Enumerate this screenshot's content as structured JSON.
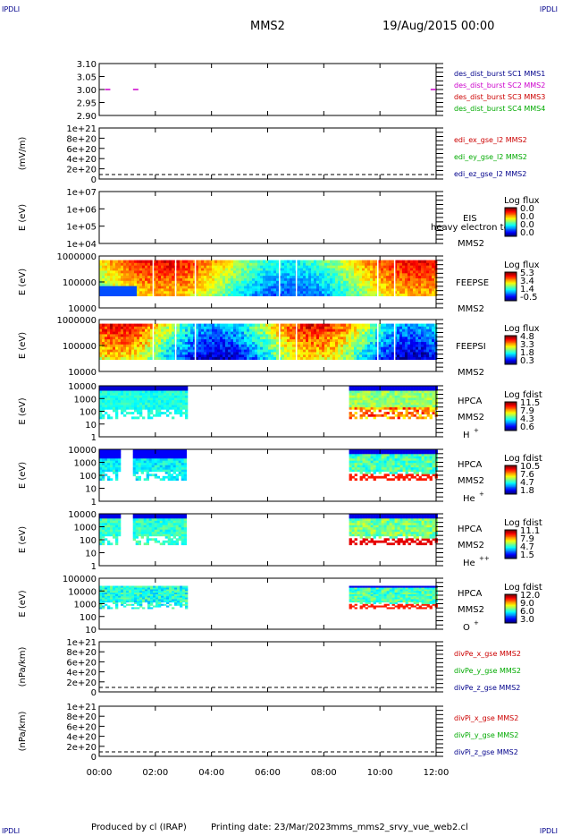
{
  "header": {
    "corner_label": "IPDLI",
    "spacecraft": "MMS2",
    "date": "19/Aug/2015 00:00"
  },
  "footer": {
    "produced_by": "Produced by cl (IRAP)",
    "printing_date": "Printing date: 23/Mar/2023",
    "file": "mms_mms2_srvy_vue_web2.cl"
  },
  "time_axis": {
    "ticks": [
      "00:00",
      "02:00",
      "04:00",
      "06:00",
      "08:00",
      "10:00",
      "12:00"
    ],
    "range_hours": [
      0,
      12
    ]
  },
  "chart_data": [
    {
      "id": "des",
      "type": "scatter",
      "ylim": [
        2.9,
        3.1
      ],
      "yticks": [
        "3.10",
        "3.05",
        "3.00",
        "2.95",
        "2.90"
      ],
      "series": [
        {
          "name": "des_dist_burst SC1 MMS1",
          "color": "#00008b",
          "points": []
        },
        {
          "name": "des_dist_burst SC2 MMS2",
          "color": "#cc00cc",
          "points": [
            [
              0.3,
              3.0
            ],
            [
              1.3,
              3.0
            ],
            [
              11.9,
              3.0
            ]
          ]
        },
        {
          "name": "des_dist_burst SC3 MMS3",
          "color": "#cc0000",
          "points": []
        },
        {
          "name": "des_dist_burst SC4 MMS4",
          "color": "#00aa00",
          "points": []
        }
      ]
    },
    {
      "id": "edi",
      "type": "line",
      "ylabel": "(mV/m)",
      "yticks": [
        "1e+21",
        "8e+20",
        "6e+20",
        "4e+20",
        "2e+20",
        "0"
      ],
      "series": [
        {
          "name": "edi_ex_gse_l2 MMS2",
          "color": "#cc0000"
        },
        {
          "name": "edi_ey_gse_l2 MMS2",
          "color": "#00aa00"
        },
        {
          "name": "edi_ez_gse_l2 MMS2",
          "color": "#00008b"
        }
      ]
    },
    {
      "id": "eis",
      "type": "heatmap",
      "ylabel": "E (eV)",
      "yticks": [
        "1e+07",
        "1e+06",
        "1e+05",
        "1e+04"
      ],
      "labels": [
        "EIS",
        "heavy electron to",
        "MMS2"
      ],
      "colorbar": {
        "title": "Log flux",
        "values": [
          "0.0",
          "0.0",
          "0.0",
          "0.0"
        ]
      },
      "coverage_hours": []
    },
    {
      "id": "feepse",
      "type": "heatmap",
      "ylabel": "E (eV)",
      "yticks": [
        "1000000",
        "100000",
        "10000"
      ],
      "labels": [
        "FEEPSE",
        "MMS2"
      ],
      "colorbar": {
        "title": "Log flux",
        "values": [
          "5.3",
          "3.4",
          "1.4",
          "-0.5"
        ]
      },
      "coverage_hours": [
        [
          0,
          12
        ]
      ]
    },
    {
      "id": "feepsi",
      "type": "heatmap",
      "ylabel": "E (eV)",
      "yticks": [
        "1000000",
        "100000",
        "10000"
      ],
      "labels": [
        "FEEPSI",
        "MMS2"
      ],
      "colorbar": {
        "title": "Log flux",
        "values": [
          "4.8",
          "3.3",
          "1.8",
          "0.3"
        ]
      },
      "coverage_hours": [
        [
          0,
          12
        ]
      ]
    },
    {
      "id": "hpca_h",
      "type": "heatmap",
      "ylabel": "E (eV)",
      "yticks": [
        "10000",
        "1000",
        "100",
        "10",
        "1"
      ],
      "labels": [
        "HPCA",
        "MMS2",
        "H",
        "+"
      ],
      "colorbar": {
        "title": "Log fdist",
        "values": [
          "11.5",
          "7.9",
          "4.3",
          "0.6"
        ]
      },
      "coverage_hours": [
        [
          0,
          3.1
        ],
        [
          8.9,
          12
        ]
      ]
    },
    {
      "id": "hpca_he",
      "type": "heatmap",
      "ylabel": "E (eV)",
      "yticks": [
        "10000",
        "1000",
        "100",
        "10",
        "1"
      ],
      "labels": [
        "HPCA",
        "MMS2",
        "He",
        "+"
      ],
      "colorbar": {
        "title": "Log fdist",
        "values": [
          "10.5",
          "7.6",
          "4.7",
          "1.8"
        ]
      },
      "coverage_hours": [
        [
          0,
          0.7
        ],
        [
          1.2,
          3.1
        ],
        [
          8.9,
          12
        ]
      ]
    },
    {
      "id": "hpca_hepp",
      "type": "heatmap",
      "ylabel": "E (eV)",
      "yticks": [
        "10000",
        "1000",
        "100",
        "10",
        "1"
      ],
      "labels": [
        "HPCA",
        "MMS2",
        "He",
        "++"
      ],
      "colorbar": {
        "title": "Log fdist",
        "values": [
          "11.1",
          "7.9",
          "4.7",
          "1.5"
        ]
      },
      "coverage_hours": [
        [
          0,
          0.7
        ],
        [
          1.2,
          3.1
        ],
        [
          8.9,
          12
        ]
      ]
    },
    {
      "id": "hpca_o",
      "type": "heatmap",
      "ylabel": "E (eV)",
      "yticks": [
        "100000",
        "10000",
        "1000",
        "100",
        "10"
      ],
      "labels": [
        "HPCA",
        "MMS2",
        "O",
        "+"
      ],
      "colorbar": {
        "title": "Log fdist",
        "values": [
          "12.0",
          "9.0",
          "6.0",
          "3.0"
        ]
      },
      "coverage_hours": [
        [
          0,
          3.1
        ],
        [
          8.9,
          12
        ]
      ]
    },
    {
      "id": "divpe",
      "type": "line",
      "ylabel": "(nPa/km)",
      "yticks": [
        "1e+21",
        "8e+20",
        "6e+20",
        "4e+20",
        "2e+20",
        "0"
      ],
      "series": [
        {
          "name": "divPe_x_gse MMS2",
          "color": "#cc0000"
        },
        {
          "name": "divPe_y_gse MMS2",
          "color": "#00aa00"
        },
        {
          "name": "divPe_z_gse MMS2",
          "color": "#00008b"
        }
      ]
    },
    {
      "id": "divpi",
      "type": "line",
      "ylabel": "(nPa/km)",
      "yticks": [
        "1e+21",
        "8e+20",
        "6e+20",
        "4e+20",
        "2e+20",
        "0"
      ],
      "series": [
        {
          "name": "divPi_x_gse MMS2",
          "color": "#cc0000"
        },
        {
          "name": "divPi_y_gse MMS2",
          "color": "#00aa00"
        },
        {
          "name": "divPi_z_gse MMS2",
          "color": "#00008b"
        }
      ]
    }
  ]
}
